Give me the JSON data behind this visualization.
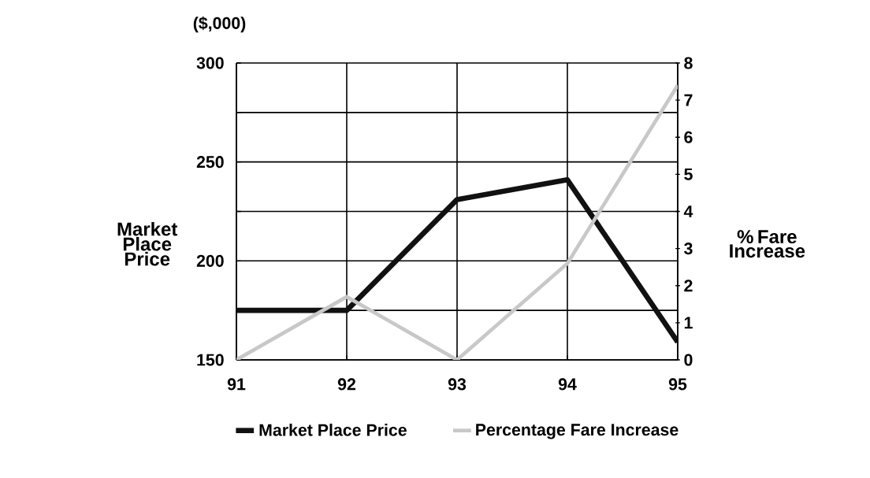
{
  "chart_data": {
    "type": "line",
    "xlabel": null,
    "ylabel": "Market Place Price",
    "y2label": "% Fare Increase",
    "annotations": [
      "($,000)"
    ],
    "categories": [
      "91",
      "92",
      "93",
      "94",
      "95"
    ],
    "series": [
      {
        "name": "Market Place Price",
        "color": "#111111",
        "values": [
          175,
          175,
          231,
          241,
          159
        ]
      },
      {
        "name": "Percentage Fare Increase",
        "color": "#c8c8c8",
        "axis": "y2",
        "values": [
          0,
          1.7,
          0,
          2.6,
          7.4
        ]
      }
    ],
    "ylim": [
      150,
      300
    ],
    "yticks": [
      150,
      {
        "value": 175,
        "label": null
      },
      200,
      {
        "value": 225,
        "label": null
      },
      250,
      {
        "value": 275,
        "label": null
      },
      300
    ],
    "y2lim": [
      0,
      8
    ],
    "y2ticks": [
      0,
      1,
      2,
      3,
      4,
      5,
      6,
      7,
      8
    ],
    "grid": true,
    "legend": "bottom",
    "marker": "none",
    "line_style": "solid"
  }
}
